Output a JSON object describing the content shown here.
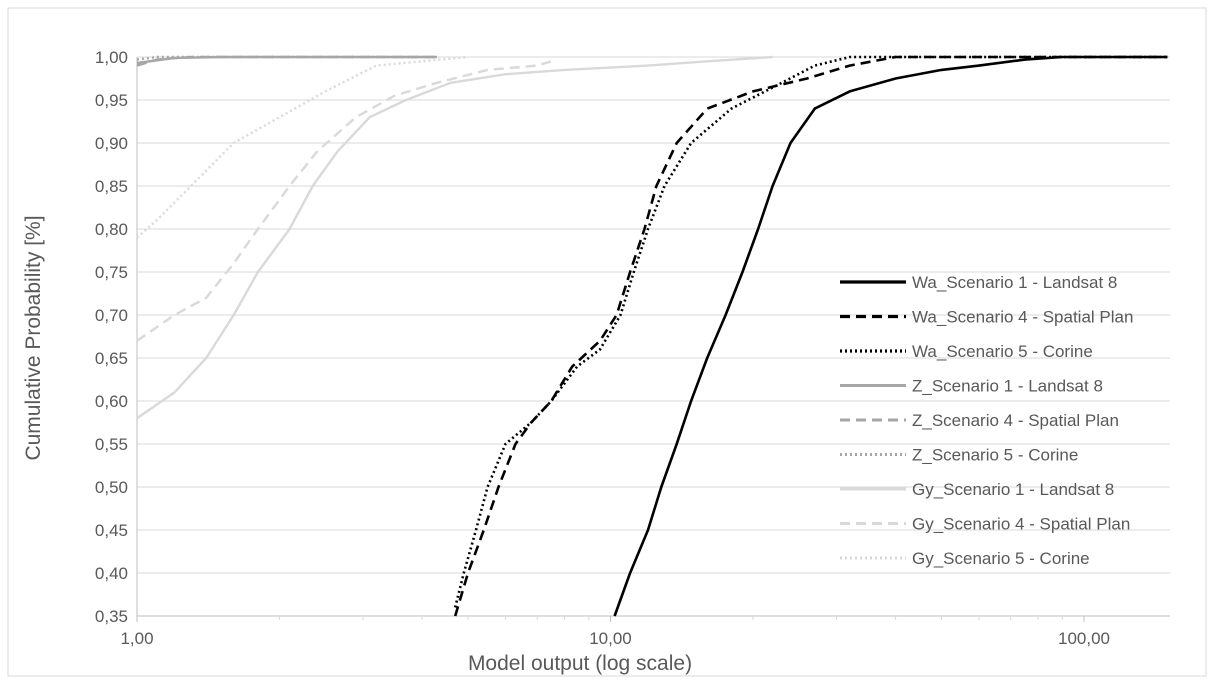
{
  "chart_data": {
    "type": "line",
    "title": "",
    "xlabel": "Model output (log scale)",
    "ylabel": "Cumulative Probability [%]",
    "x_scale": "log",
    "xlim": [
      1,
      150
    ],
    "ylim": [
      0.35,
      1.0
    ],
    "x_ticks": [
      "1,00",
      "10,00",
      "100,00"
    ],
    "y_ticks": [
      "0,35",
      "0,40",
      "0,45",
      "0,50",
      "0,55",
      "0,60",
      "0,65",
      "0,70",
      "0,75",
      "0,80",
      "0,85",
      "0,90",
      "0,95",
      "1,00"
    ],
    "grid": "horizontal",
    "legend_position": "right",
    "series": [
      {
        "name": "Wa_Scenario 1 - Landsat 8",
        "color": "#000000",
        "dash": "solid",
        "points": [
          [
            10.2,
            0.35
          ],
          [
            11.0,
            0.4
          ],
          [
            12.0,
            0.45
          ],
          [
            12.8,
            0.5
          ],
          [
            13.8,
            0.55
          ],
          [
            14.8,
            0.6
          ],
          [
            16.0,
            0.65
          ],
          [
            17.5,
            0.7
          ],
          [
            19.0,
            0.75
          ],
          [
            20.5,
            0.8
          ],
          [
            22.0,
            0.85
          ],
          [
            24.0,
            0.9
          ],
          [
            27.0,
            0.94
          ],
          [
            32.0,
            0.96
          ],
          [
            40.0,
            0.975
          ],
          [
            50.0,
            0.985
          ],
          [
            60.0,
            0.99
          ],
          [
            75.0,
            0.997
          ],
          [
            90.0,
            1.0
          ],
          [
            150.0,
            1.0
          ]
        ]
      },
      {
        "name": "Wa_Scenario 4 - Spatial Plan",
        "color": "#000000",
        "dash": "dashed",
        "points": [
          [
            4.7,
            0.35
          ],
          [
            5.0,
            0.4
          ],
          [
            5.4,
            0.45
          ],
          [
            5.8,
            0.5
          ],
          [
            6.3,
            0.55
          ],
          [
            6.8,
            0.575
          ],
          [
            7.5,
            0.6
          ],
          [
            8.3,
            0.64
          ],
          [
            9.5,
            0.67
          ],
          [
            10.3,
            0.7
          ],
          [
            11.0,
            0.75
          ],
          [
            11.8,
            0.8
          ],
          [
            12.5,
            0.85
          ],
          [
            13.8,
            0.9
          ],
          [
            16.0,
            0.94
          ],
          [
            20.0,
            0.96
          ],
          [
            26.0,
            0.975
          ],
          [
            32.0,
            0.99
          ],
          [
            40.0,
            1.0
          ],
          [
            150.0,
            1.0
          ]
        ]
      },
      {
        "name": "Wa_Scenario 5 - Corine",
        "color": "#000000",
        "dash": "dotted",
        "points": [
          [
            4.7,
            0.36
          ],
          [
            4.9,
            0.4
          ],
          [
            5.2,
            0.45
          ],
          [
            5.5,
            0.5
          ],
          [
            6.0,
            0.55
          ],
          [
            6.8,
            0.575
          ],
          [
            7.5,
            0.6
          ],
          [
            8.5,
            0.64
          ],
          [
            9.5,
            0.66
          ],
          [
            10.5,
            0.7
          ],
          [
            11.2,
            0.75
          ],
          [
            12.0,
            0.8
          ],
          [
            13.0,
            0.85
          ],
          [
            14.8,
            0.9
          ],
          [
            18.0,
            0.94
          ],
          [
            23.0,
            0.97
          ],
          [
            27.0,
            0.99
          ],
          [
            32.0,
            1.0
          ],
          [
            150.0,
            1.0
          ]
        ]
      },
      {
        "name": "Z_Scenario 1 - Landsat 8",
        "color": "#a6a6a6",
        "dash": "solid",
        "points": [
          [
            1.0,
            0.993
          ],
          [
            1.2,
            0.999
          ],
          [
            1.5,
            1.0
          ],
          [
            4.3,
            1.0
          ]
        ]
      },
      {
        "name": "Z_Scenario 4 - Spatial Plan",
        "color": "#a6a6a6",
        "dash": "dashed",
        "points": [
          [
            1.0,
            0.99
          ],
          [
            1.1,
            0.997
          ],
          [
            1.3,
            1.0
          ],
          [
            4.3,
            1.0
          ]
        ]
      },
      {
        "name": "Z_Scenario 5 - Corine",
        "color": "#a6a6a6",
        "dash": "dotted",
        "points": [
          [
            1.0,
            0.997
          ],
          [
            1.1,
            1.0
          ],
          [
            4.3,
            1.0
          ]
        ]
      },
      {
        "name": "Gy_Scenario 1 - Landsat 8",
        "color": "#d9d9d9",
        "dash": "solid",
        "points": [
          [
            1.0,
            0.58
          ],
          [
            1.2,
            0.61
          ],
          [
            1.4,
            0.65
          ],
          [
            1.6,
            0.7
          ],
          [
            1.8,
            0.75
          ],
          [
            2.1,
            0.8
          ],
          [
            2.35,
            0.85
          ],
          [
            2.65,
            0.89
          ],
          [
            3.1,
            0.93
          ],
          [
            3.7,
            0.95
          ],
          [
            4.6,
            0.97
          ],
          [
            6.0,
            0.98
          ],
          [
            8.0,
            0.985
          ],
          [
            12.0,
            0.99
          ],
          [
            16.0,
            0.995
          ],
          [
            22.0,
            1.0
          ]
        ]
      },
      {
        "name": "Gy_Scenario 4 - Spatial Plan",
        "color": "#d9d9d9",
        "dash": "dashed",
        "points": [
          [
            1.0,
            0.67
          ],
          [
            1.2,
            0.7
          ],
          [
            1.4,
            0.72
          ],
          [
            1.6,
            0.76
          ],
          [
            1.8,
            0.8
          ],
          [
            2.1,
            0.85
          ],
          [
            2.4,
            0.89
          ],
          [
            2.9,
            0.93
          ],
          [
            3.5,
            0.955
          ],
          [
            4.3,
            0.97
          ],
          [
            5.5,
            0.985
          ],
          [
            7.0,
            0.99
          ],
          [
            7.5,
            0.995
          ]
        ]
      },
      {
        "name": "Gy_Scenario 5 - Corine",
        "color": "#d9d9d9",
        "dash": "dotted",
        "points": [
          [
            1.0,
            0.79
          ],
          [
            1.1,
            0.81
          ],
          [
            1.3,
            0.85
          ],
          [
            1.6,
            0.9
          ],
          [
            2.0,
            0.93
          ],
          [
            2.5,
            0.96
          ],
          [
            3.2,
            0.99
          ],
          [
            4.0,
            0.995
          ],
          [
            5.0,
            1.0
          ]
        ]
      }
    ]
  }
}
